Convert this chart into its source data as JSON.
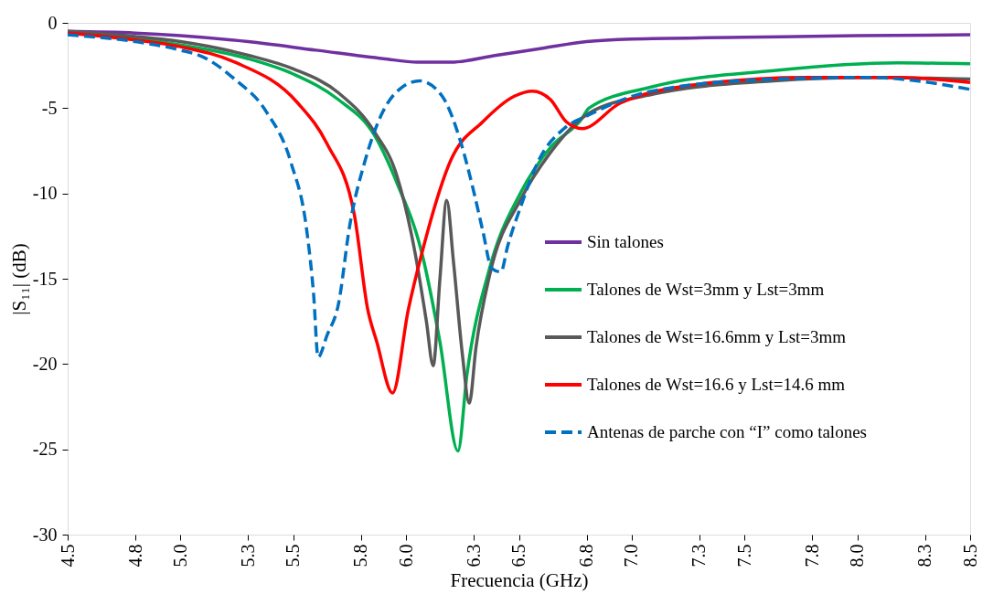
{
  "chart_data": {
    "type": "line",
    "xlabel": "Frecuencia (GHz)",
    "ylabel": "|S₁₁|  (dB)",
    "xlim": [
      4.5,
      8.5
    ],
    "ylim": [
      -30,
      0
    ],
    "xticks": [
      4.5,
      4.8,
      {
        "value": 5,
        "label": "5.0"
      },
      5.3,
      5.5,
      5.8,
      {
        "value": 6,
        "label": "6.0"
      },
      6.3,
      6.5,
      6.8,
      {
        "value": 7,
        "label": "7.0"
      },
      7.3,
      7.5,
      7.8,
      {
        "value": 8,
        "label": "8.0"
      },
      8.3,
      8.5
    ],
    "yticks": [
      -30,
      -25,
      -20,
      -15,
      -10,
      -5,
      0
    ],
    "grid": false,
    "legend": "bottom right",
    "marker": "none",
    "series": [
      {
        "name": "Sin talones",
        "color": "#7030a0",
        "line_style": "solid",
        "x": [
          4.5,
          4.8,
          5.0,
          5.3,
          5.6,
          5.9,
          6.05,
          6.2,
          6.4,
          6.6,
          6.8,
          7.0,
          7.5,
          8.0,
          8.5
        ],
        "values": [
          -0.5,
          -0.6,
          -0.75,
          -1.1,
          -1.6,
          -2.1,
          -2.3,
          -2.3,
          -1.9,
          -1.5,
          -1.1,
          -0.95,
          -0.85,
          -0.75,
          -0.7
        ]
      },
      {
        "name": "Talones de Wst=3mm y Lst=3mm",
        "color": "#00b050",
        "line_style": "solid",
        "x": [
          4.5,
          4.8,
          5.0,
          5.3,
          5.5,
          5.7,
          5.86,
          5.96,
          6.07,
          6.15,
          6.23,
          6.27,
          6.37,
          6.51,
          6.64,
          6.78,
          6.81,
          7.09,
          7.63,
          8.18,
          8.5
        ],
        "values": [
          -0.6,
          -0.9,
          -1.3,
          -2.1,
          -3.0,
          -4.5,
          -6.6,
          -9.4,
          -13.5,
          -18.7,
          -25.1,
          -20.6,
          -14.4,
          -9.9,
          -7.3,
          -5.6,
          -5.0,
          -3.75,
          -2.8,
          -2.35,
          -2.4
        ]
      },
      {
        "name": "Talones de Wst=16.6mm y Lst=3mm",
        "color": "#595959",
        "line_style": "solid",
        "x": [
          4.5,
          4.8,
          5.0,
          5.3,
          5.5,
          5.7,
          5.86,
          5.96,
          6.04,
          6.09,
          6.12,
          6.15,
          6.18,
          6.21,
          6.25,
          6.28,
          6.31,
          6.37,
          6.51,
          6.64,
          6.81,
          7.09,
          7.63,
          8.05,
          8.5
        ],
        "values": [
          -0.5,
          -0.8,
          -1.1,
          -1.9,
          -2.7,
          -4.1,
          -6.4,
          -9.0,
          -13.5,
          -17.5,
          -20.1,
          -15.0,
          -10.4,
          -14.0,
          -19.5,
          -22.3,
          -19.0,
          -14.8,
          -10.3,
          -7.6,
          -5.3,
          -4.2,
          -3.4,
          -3.2,
          -3.3
        ]
      },
      {
        "name": "Talones de Wst=16.6 y Lst=14.6 mm",
        "color": "#ff0000",
        "line_style": "solid",
        "x": [
          4.5,
          4.8,
          5.0,
          5.24,
          5.52,
          5.65,
          5.77,
          5.83,
          5.87,
          5.94,
          6.01,
          6.07,
          6.2,
          6.34,
          6.48,
          6.56,
          6.64,
          6.71,
          6.78,
          6.95,
          7.36,
          7.77,
          8.18,
          8.5
        ],
        "values": [
          -0.6,
          -1.0,
          -1.4,
          -2.3,
          -4.7,
          -7.1,
          -11.2,
          -16.8,
          -18.7,
          -21.7,
          -16.8,
          -13.5,
          -8.0,
          -5.8,
          -4.3,
          -4.0,
          -4.5,
          -5.8,
          -6.2,
          -4.7,
          -3.5,
          -3.2,
          -3.2,
          -3.5
        ]
      },
      {
        "name": "Antenas de parche con “I” como talones",
        "color": "#0070c0",
        "line_style": "dashed",
        "x": [
          4.5,
          4.8,
          5.0,
          5.1,
          5.24,
          5.38,
          5.49,
          5.56,
          5.59,
          5.61,
          5.65,
          5.7,
          5.75,
          5.82,
          5.89,
          5.97,
          6.06,
          6.16,
          6.24,
          6.3,
          6.34,
          6.38,
          6.42,
          6.45,
          6.51,
          6.59,
          6.7,
          6.81,
          7.09,
          7.63,
          8.05,
          8.32,
          8.5
        ],
        "values": [
          -0.7,
          -1.1,
          -1.6,
          -2.0,
          -3.3,
          -5.2,
          -8.2,
          -12.2,
          -15.9,
          -19.6,
          -18.3,
          -16.5,
          -11.9,
          -8.0,
          -5.4,
          -3.9,
          -3.4,
          -4.3,
          -6.9,
          -9.9,
          -12.2,
          -14.4,
          -14.6,
          -13.1,
          -10.7,
          -8.0,
          -6.2,
          -5.4,
          -4.0,
          -3.3,
          -3.2,
          -3.5,
          -3.9
        ]
      }
    ]
  }
}
